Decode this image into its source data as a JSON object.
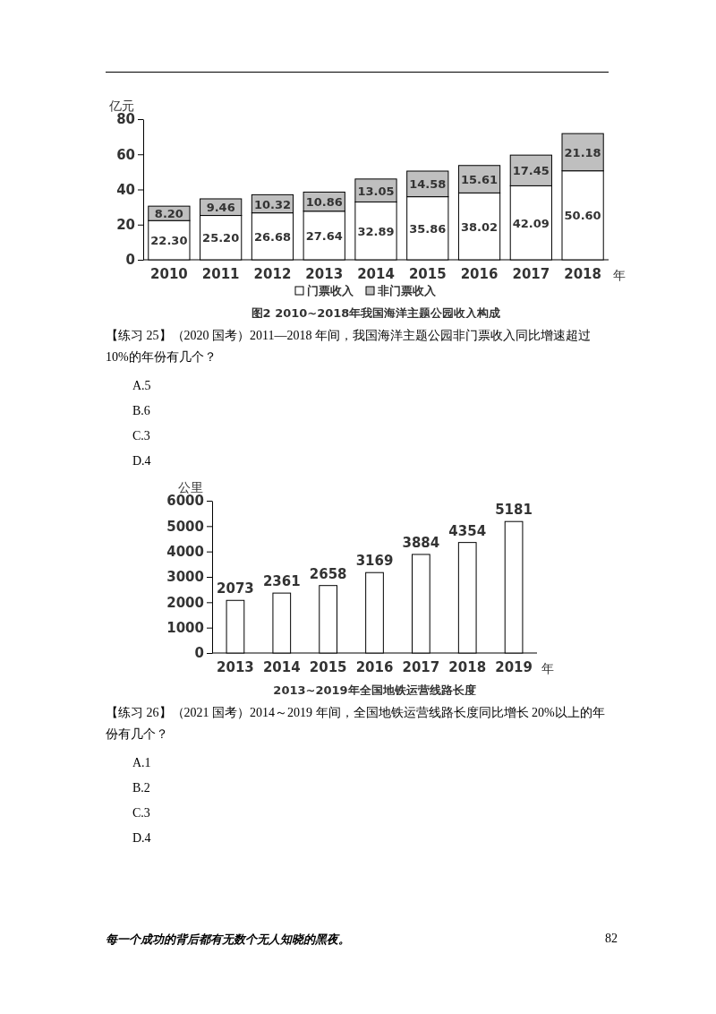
{
  "chart_data": [
    {
      "type": "bar",
      "title": "图2  2010~2018年我国海洋主题公园收入构成",
      "ylabel": "亿元",
      "xlabel": "年",
      "categories": [
        "2010",
        "2011",
        "2012",
        "2013",
        "2014",
        "2015",
        "2016",
        "2017",
        "2018"
      ],
      "stacked": true,
      "series": [
        {
          "name": "门票收入",
          "color": "#ffffff",
          "values": [
            22.3,
            25.2,
            26.68,
            27.64,
            32.89,
            35.86,
            38.02,
            42.09,
            50.6
          ],
          "value_labels": [
            "22.30",
            "25.20",
            "26.68",
            "27.64",
            "32.89",
            "35.86",
            "38.02",
            "42.09",
            "50.60"
          ]
        },
        {
          "name": "非门票收入",
          "color": "#bfbfbf",
          "values": [
            8.2,
            9.46,
            10.32,
            10.86,
            13.05,
            14.58,
            15.61,
            17.45,
            21.18
          ],
          "value_labels": [
            "8.20",
            "9.46",
            "10.32",
            "10.86",
            "13.05",
            "14.58",
            "15.61",
            "17.45",
            "21.18"
          ]
        }
      ],
      "data_labels": false,
      "ylim": [
        0,
        80
      ],
      "yticks": [
        0,
        20,
        40,
        60,
        80
      ],
      "grid": false,
      "legend": "bottom",
      "annotations": [
        "【练习 25】（2020 国考）2011—2018 年间，我国海洋主题公园非门票收入同比增速超过 10%的年份有几个？",
        "A.5",
        "B.6",
        "C.3",
        "D.4"
      ]
    },
    {
      "type": "bar",
      "title": "2013~2019年全国地铁运营线路长度",
      "ylabel": "公里",
      "xlabel": "年",
      "categories": [
        "2013",
        "2014",
        "2015",
        "2016",
        "2017",
        "2018",
        "2019"
      ],
      "values": [
        2073,
        2361,
        2658,
        3169,
        3884,
        4354,
        5181
      ],
      "color": "#ffffff",
      "ylim": [
        0,
        6000
      ],
      "yticks": [
        0,
        1000,
        2000,
        3000,
        4000,
        5000,
        6000
      ],
      "grid": false,
      "data_labels": true,
      "annotations": [
        "【练习 26】（2021 国考）2014～2019 年间，全国地铁运营线路长度同比增长 20%以上的年份有几个？",
        "A.1",
        "B.2",
        "C.3",
        "D.4",
        "每一个成功的背后都有无数个无人知晓的黑夜。",
        "82"
      ]
    }
  ]
}
